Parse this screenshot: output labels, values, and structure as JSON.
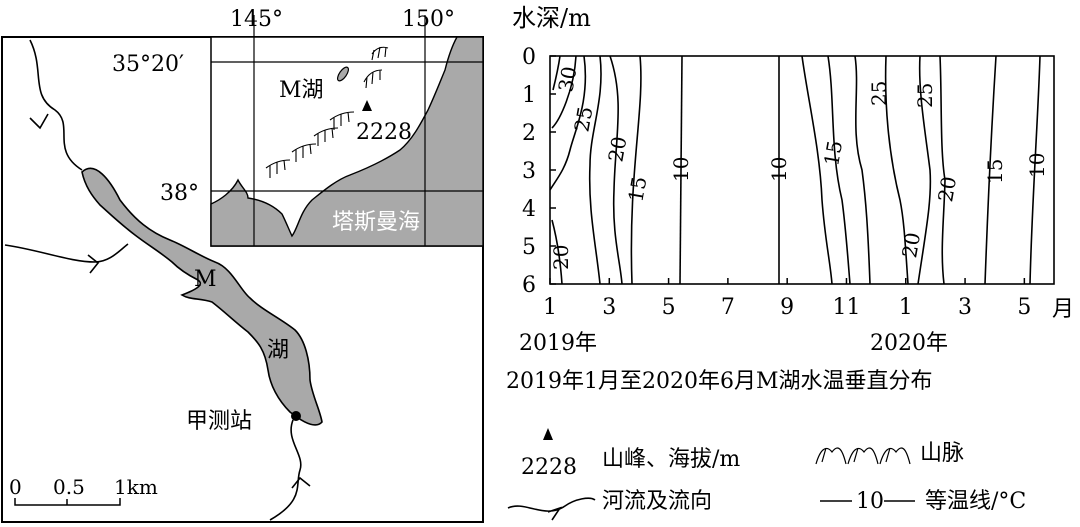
{
  "map": {
    "lake_label_1": "M",
    "lake_label_2": "湖",
    "station_label": "甲测站",
    "scale": {
      "zero": "0",
      "half": "0.5",
      "one": "1km"
    }
  },
  "inset": {
    "lon_labels": [
      "145°",
      "150°"
    ],
    "lat_labels": [
      "35°20′",
      "38°"
    ],
    "lake_label": "M湖",
    "peak_elevation": "2228",
    "sea_label": "塔斯曼海"
  },
  "chart_data": {
    "type": "contour",
    "title": "2019年1月至2020年6月M湖水温垂直分布",
    "ylabel": "水深/m",
    "y_ticks": [
      "0",
      "1",
      "2",
      "3",
      "4",
      "5",
      "6"
    ],
    "ylim": [
      0,
      6
    ],
    "x_ticks": [
      "1",
      "3",
      "5",
      "7",
      "9",
      "11",
      "1",
      "3",
      "5"
    ],
    "x_unit": "月",
    "year_labels": [
      "2019年",
      "2020年"
    ],
    "contour_labels": [
      "30",
      "25",
      "20",
      "15",
      "10",
      "10",
      "15",
      "25",
      "25",
      "20",
      "20",
      "15",
      "10",
      "20"
    ]
  },
  "legend": {
    "peak_elevation": "2228",
    "peak_label": "山峰、海拔/m",
    "mountain_label": "山脉",
    "river_label": "河流及流向",
    "isotherm_value": "10",
    "isotherm_label": "等温线/°C"
  }
}
